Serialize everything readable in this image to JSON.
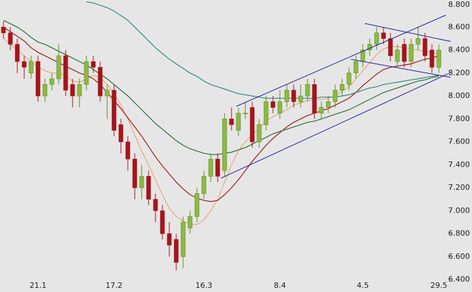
{
  "chart_data": {
    "type": "candlestick",
    "categories": [
      null,
      null,
      null,
      null,
      null,
      "21.1",
      null,
      null,
      null,
      null,
      null,
      null,
      null,
      null,
      null,
      null,
      "17.2",
      null,
      null,
      null,
      null,
      null,
      null,
      null,
      null,
      null,
      null,
      null,
      null,
      "16.3",
      null,
      null,
      null,
      null,
      null,
      null,
      null,
      null,
      null,
      null,
      "8.4",
      null,
      null,
      null,
      null,
      null,
      null,
      null,
      null,
      null,
      null,
      null,
      "4.5",
      null,
      null,
      null,
      null,
      null,
      null,
      null,
      null,
      null,
      null,
      "29.5"
    ],
    "open": [
      8.6,
      8.55,
      8.45,
      8.3,
      8.2,
      8.3,
      8.0,
      8.1,
      8.15,
      8.35,
      8.1,
      8.0,
      8.1,
      8.3,
      8.25,
      8.0,
      8.05,
      7.75,
      7.6,
      7.45,
      7.2,
      7.3,
      7.1,
      7.0,
      6.8,
      6.75,
      6.6,
      6.85,
      6.95,
      7.15,
      7.3,
      7.45,
      7.35,
      7.8,
      7.7,
      7.85,
      7.9,
      7.6,
      7.75,
      7.95,
      7.85,
      7.95,
      8.05,
      7.95,
      8.0,
      8.1,
      7.85,
      7.9,
      7.95,
      8.05,
      8.1,
      8.2,
      8.3,
      8.4,
      8.45,
      8.55,
      8.5,
      8.3,
      8.45,
      8.3,
      8.45,
      8.5,
      8.4,
      8.25
    ],
    "high": [
      8.65,
      8.6,
      8.5,
      8.35,
      8.35,
      8.35,
      8.15,
      8.2,
      8.45,
      8.4,
      8.15,
      8.15,
      8.35,
      8.35,
      8.3,
      8.1,
      8.1,
      7.8,
      7.65,
      7.5,
      7.4,
      7.35,
      7.15,
      7.05,
      6.9,
      6.8,
      6.95,
      7.0,
      7.2,
      7.35,
      7.5,
      7.5,
      7.85,
      7.9,
      7.9,
      7.95,
      7.95,
      7.8,
      8.0,
      8.0,
      8.05,
      8.1,
      8.1,
      8.1,
      8.15,
      8.15,
      7.95,
      8.0,
      8.1,
      8.15,
      8.25,
      8.35,
      8.45,
      8.5,
      8.6,
      8.6,
      8.55,
      8.45,
      8.5,
      8.5,
      8.6,
      8.55,
      8.45,
      8.45
    ],
    "low": [
      8.5,
      8.4,
      8.2,
      8.15,
      8.15,
      7.95,
      7.95,
      8.05,
      8.1,
      8.0,
      7.9,
      7.9,
      8.05,
      8.2,
      7.95,
      7.8,
      7.65,
      7.5,
      7.35,
      7.1,
      7.1,
      7.05,
      6.9,
      6.75,
      6.6,
      6.48,
      6.5,
      6.8,
      6.9,
      7.1,
      7.25,
      7.25,
      7.3,
      7.7,
      7.65,
      7.8,
      7.55,
      7.55,
      7.7,
      7.85,
      7.8,
      7.9,
      7.9,
      7.9,
      7.95,
      7.8,
      7.8,
      7.85,
      7.9,
      8.0,
      8.05,
      8.15,
      8.25,
      8.35,
      8.4,
      8.45,
      8.3,
      8.25,
      8.25,
      8.25,
      8.4,
      8.3,
      8.2,
      8.2
    ],
    "close": [
      8.55,
      8.45,
      8.3,
      8.25,
      8.3,
      8.0,
      8.1,
      8.15,
      8.35,
      8.05,
      8.0,
      8.1,
      8.3,
      8.25,
      8.0,
      8.05,
      7.7,
      7.6,
      7.45,
      7.2,
      7.3,
      7.1,
      7.0,
      6.8,
      6.7,
      6.55,
      6.9,
      6.95,
      7.15,
      7.3,
      7.45,
      7.3,
      7.8,
      7.75,
      7.85,
      7.85,
      7.6,
      7.75,
      7.95,
      7.9,
      7.95,
      8.05,
      7.95,
      8.0,
      8.1,
      7.85,
      7.9,
      7.95,
      8.05,
      8.1,
      8.2,
      8.3,
      8.4,
      8.45,
      8.55,
      8.5,
      8.35,
      8.4,
      8.3,
      8.45,
      8.5,
      8.35,
      8.25,
      8.4
    ],
    "up_color": "#8cba42",
    "down_color": "#a3161c",
    "series": [
      {
        "color": "#e8a878",
        "values": [
          8.5,
          8.45,
          8.4,
          8.35,
          8.3,
          8.25,
          8.22,
          8.2,
          8.2,
          8.18,
          8.13,
          8.12,
          8.15,
          8.18,
          8.16,
          8.1,
          8.02,
          7.92,
          7.8,
          7.66,
          7.52,
          7.4,
          7.27,
          7.14,
          7.02,
          6.95,
          6.91,
          6.88,
          6.88,
          6.92,
          7.0,
          7.1,
          7.25,
          7.4,
          7.52,
          7.6,
          7.66,
          7.72,
          7.78,
          7.82,
          7.85,
          7.88,
          7.92,
          7.94,
          7.96,
          7.97,
          7.97,
          7.98,
          8.0,
          8.04,
          8.08,
          8.15,
          8.22,
          8.29,
          8.36,
          8.41,
          8.43,
          8.43,
          8.42,
          8.41,
          8.4,
          8.39,
          8.38,
          8.37
        ]
      },
      {
        "color": "#9b1b1b",
        "values": [
          8.6,
          8.56,
          8.52,
          8.48,
          8.42,
          8.38,
          8.35,
          8.32,
          8.29,
          8.26,
          8.23,
          8.2,
          8.18,
          8.15,
          8.1,
          8.03,
          7.96,
          7.89,
          7.81,
          7.73,
          7.65,
          7.56,
          7.47,
          7.39,
          7.32,
          7.25,
          7.19,
          7.14,
          7.11,
          7.09,
          7.08,
          7.09,
          7.14,
          7.2,
          7.27,
          7.35,
          7.43,
          7.5,
          7.57,
          7.63,
          7.68,
          7.73,
          7.77,
          7.8,
          7.83,
          7.85,
          7.87,
          7.89,
          7.92,
          7.95,
          7.98,
          8.03,
          8.09,
          8.14,
          8.19,
          8.23,
          8.25,
          8.26,
          8.27,
          8.28,
          8.3,
          8.32,
          8.33,
          8.35
        ]
      },
      {
        "color": "#2e6b3a",
        "values": [
          8.66,
          8.63,
          8.6,
          8.56,
          8.51,
          8.47,
          8.45,
          8.42,
          8.39,
          8.36,
          8.33,
          8.3,
          8.27,
          8.23,
          8.19,
          8.15,
          8.1,
          8.05,
          8.0,
          7.94,
          7.88,
          7.82,
          7.76,
          7.71,
          7.66,
          7.61,
          7.57,
          7.54,
          7.52,
          7.5,
          7.49,
          7.49,
          7.5,
          7.51,
          7.53,
          7.55,
          7.58,
          7.61,
          7.64,
          7.67,
          7.69,
          7.71,
          7.73,
          7.75,
          7.77,
          7.78,
          7.8,
          7.82,
          7.84,
          7.86,
          7.88,
          7.91,
          7.94,
          7.97,
          8.0,
          8.03,
          8.05,
          8.07,
          8.09,
          8.11,
          8.13,
          8.14,
          8.16,
          8.17
        ]
      },
      {
        "color": "#2e8b83",
        "values": [
          null,
          null,
          null,
          null,
          null,
          null,
          null,
          null,
          null,
          null,
          null,
          null,
          8.82,
          8.81,
          8.79,
          8.77,
          8.74,
          8.7,
          8.66,
          8.6,
          8.54,
          8.48,
          8.42,
          8.37,
          8.32,
          8.28,
          8.24,
          8.2,
          8.17,
          8.13,
          8.1,
          8.08,
          8.06,
          8.04,
          8.02,
          8.01,
          8.0,
          7.99,
          7.98,
          7.98,
          7.98,
          7.98,
          7.98,
          7.98,
          7.98,
          7.98,
          7.99,
          7.99,
          7.99,
          8.0,
          8.01,
          8.03,
          8.05,
          8.07,
          8.08,
          8.1,
          8.11,
          8.12,
          8.13,
          8.14,
          8.15,
          8.16,
          8.17,
          8.18
        ]
      }
    ],
    "ylim": [
      6.4,
      8.8
    ],
    "yticks": [
      {
        "value": 6.4,
        "label": "6.400"
      },
      {
        "value": 6.6,
        "label": "6.600"
      },
      {
        "value": 6.8,
        "label": "6.800"
      },
      {
        "value": 7.0,
        "label": "7.000"
      },
      {
        "value": 7.2,
        "label": "7.200"
      },
      {
        "value": 7.4,
        "label": "7.400"
      },
      {
        "value": 7.6,
        "label": "7.600"
      },
      {
        "value": 7.8,
        "label": "7.800"
      },
      {
        "value": 8.0,
        "label": "8.000"
      },
      {
        "value": 8.2,
        "label": "8.200"
      },
      {
        "value": 8.4,
        "label": "8.400"
      },
      {
        "value": 8.6,
        "label": "8.600"
      },
      {
        "value": 8.8,
        "label": "8.800"
      }
    ],
    "grid": false
  }
}
